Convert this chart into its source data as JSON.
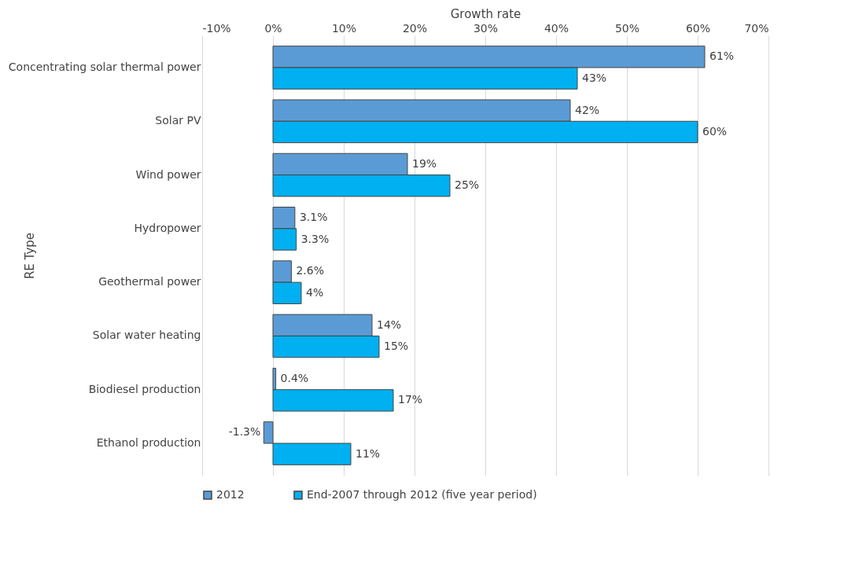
{
  "chart_data": {
    "type": "bar",
    "orientation": "horizontal",
    "xlabel": "Growth rate",
    "ylabel": "RE Type",
    "categories": [
      "Concentrating solar thermal power",
      "Solar PV",
      "Wind power",
      "Hydropower",
      "Geothermal power",
      "Solar water heating",
      "Biodiesel production",
      "Ethanol production"
    ],
    "series": [
      {
        "name": "2012",
        "color": "#5b9bd5",
        "values": [
          61,
          42,
          19,
          3.1,
          2.6,
          14,
          0.4,
          -1.3
        ],
        "value_labels": [
          "61%",
          "42%",
          "19%",
          "3.1%",
          "2.6%",
          "14%",
          "0.4%",
          "-1.3%"
        ]
      },
      {
        "name": "End-2007 through 2012 (five year period)",
        "color": "#00b0f0",
        "values": [
          43,
          60,
          25,
          3.3,
          4,
          15,
          17,
          11
        ],
        "value_labels": [
          "43%",
          "60%",
          "25%",
          "3.3%",
          "4%",
          "15%",
          "17%",
          "11%"
        ]
      }
    ],
    "xlim": [
      -10,
      70
    ],
    "xticks": [
      {
        "value": -10,
        "label": "-10%"
      },
      {
        "value": 0,
        "label": "0%"
      },
      {
        "value": 10,
        "label": "10%"
      },
      {
        "value": 20,
        "label": "20%"
      },
      {
        "value": 30,
        "label": "30%"
      },
      {
        "value": 40,
        "label": "40%"
      },
      {
        "value": 50,
        "label": "50%"
      },
      {
        "value": 60,
        "label": "60%"
      },
      {
        "value": 70,
        "label": "70%"
      }
    ],
    "grid": "x",
    "legend": "bottom"
  }
}
